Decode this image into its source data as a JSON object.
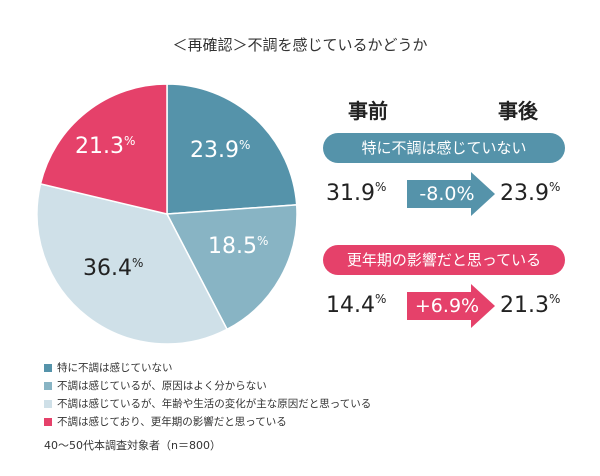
{
  "chart_data": {
    "type": "pie",
    "title": "＜再確認＞不調を感じているかどうか",
    "slices": [
      {
        "label": "特に不調は感じていない",
        "value": 23.9,
        "display": "23.9",
        "color": "#5593aa",
        "text_color": "#ffffff"
      },
      {
        "label": "不調は感じているが、原因はよく分からない",
        "value": 18.5,
        "display": "18.5",
        "color": "#88b4c4",
        "text_color": "#ffffff"
      },
      {
        "label": "不調は感じているが、年齢や生活の変化が主な原因だと思っている",
        "value": 36.4,
        "display": "36.4",
        "color": "#cfe0e8",
        "text_color": "#222222"
      },
      {
        "label": "不調は感じており、更年期の影響だと思っている",
        "value": 21.3,
        "display": "21.3",
        "color": "#e5416a",
        "text_color": "#ffffff"
      }
    ],
    "start": "top",
    "direction": "clockwise",
    "unit": "%",
    "legend_position": "bottom-left",
    "note": "40～50代本調査対象者（n＝800）"
  },
  "comparison": {
    "before_label": "事前",
    "after_label": "事後",
    "unit": "%",
    "rows": [
      {
        "label": "特に不調は感じていない",
        "before": "31.9",
        "change": "-8.0%",
        "after": "23.9",
        "color": "#5593aa"
      },
      {
        "label": "更年期の影響だと思っている",
        "before": "14.4",
        "change": "+6.9%",
        "after": "21.3",
        "color": "#e5416a"
      }
    ]
  }
}
